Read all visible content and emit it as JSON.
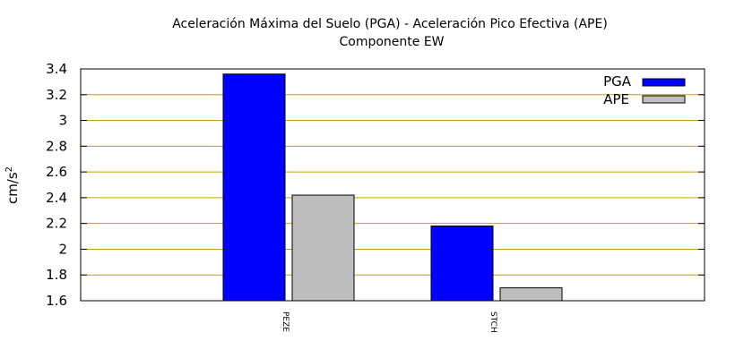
{
  "chart_data": {
    "type": "bar",
    "title": "Aceleración Máxima del Suelo (PGA) -  Aceleración Pico Efectiva (APE)",
    "subtitle": "Componente EW",
    "ylabel": "cm/s",
    "ylabel_sup": "2",
    "categories": [
      "PEZE",
      "STCH"
    ],
    "series": [
      {
        "name": "PGA",
        "values": [
          3.36,
          2.18
        ]
      },
      {
        "name": "APE",
        "values": [
          2.42,
          1.7
        ]
      }
    ],
    "ylim": [
      1.6,
      3.4
    ],
    "yticks": [
      "1.6",
      "1.8",
      "2",
      "2.2",
      "2.4",
      "2.6",
      "2.8",
      "3",
      "3.2",
      "3.4"
    ],
    "grid": true,
    "legend_position": "top-right"
  },
  "colors": {
    "PGA": "#0000ff",
    "APE": "#bebebe",
    "grid": "#c8a000"
  }
}
